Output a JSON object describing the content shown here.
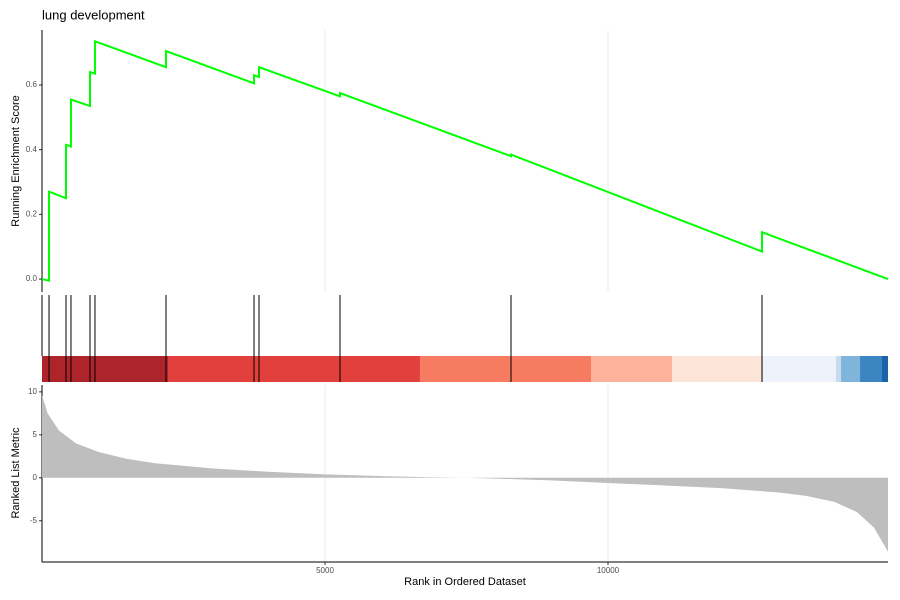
{
  "chart_data": [
    {
      "type": "line",
      "title": "lung development",
      "ylabel": "Running Enrichment Score",
      "color": "#00ff00",
      "x": [
        0,
        124,
        124,
        424,
        424,
        512,
        512,
        848,
        848,
        936,
        936,
        2191,
        2191,
        3746,
        3746,
        3834,
        3834,
        5265,
        5265,
        8286,
        8286,
        12721,
        12721,
        14947
      ],
      "values": [
        0,
        -0.005,
        0.27,
        0.25,
        0.415,
        0.41,
        0.555,
        0.535,
        0.64,
        0.635,
        0.735,
        0.655,
        0.705,
        0.605,
        0.63,
        0.625,
        0.655,
        0.565,
        0.575,
        0.38,
        0.385,
        0.085,
        0.145,
        0
      ],
      "xlim": [
        0,
        14947
      ],
      "ylim": [
        -0.04,
        0.77
      ],
      "yticks": [
        {
          "value": 0,
          "label": "0.0"
        },
        {
          "value": 0.2,
          "label": "0.2"
        },
        {
          "value": 0.4,
          "label": "0.4"
        },
        {
          "value": 0.6,
          "label": "0.6"
        }
      ],
      "grid": true
    },
    {
      "type": "rug",
      "x": [
        124,
        424,
        512,
        848,
        936,
        2191,
        3746,
        3834,
        5265,
        8286,
        12721
      ],
      "xlim": [
        0,
        14947
      ],
      "bins": [
        0,
        2226,
        6678,
        9700,
        11131,
        12739,
        14029,
        14117,
        14453,
        14841,
        14947
      ],
      "colors": [
        "#ad252b",
        "#e2403d",
        "#f67b60",
        "#fdb39b",
        "#fde4d9",
        "#eef3fb",
        "#c6dbef",
        "#80b5db",
        "#3c85c3",
        "#1b62a9"
      ]
    },
    {
      "type": "area",
      "xlabel": "Rank in Ordered Dataset",
      "ylabel": "Ranked List Metric",
      "color": "#bebebe",
      "x": [
        0,
        100,
        300,
        600,
        1000,
        1500,
        2000,
        3000,
        4000,
        5000,
        6000,
        7000,
        7500,
        8000,
        9000,
        10000,
        11000,
        12000,
        13000,
        13500,
        14000,
        14400,
        14700,
        14850,
        14947
      ],
      "values": [
        9.6,
        7.5,
        5.5,
        4,
        3,
        2.2,
        1.7,
        1.1,
        0.7,
        0.4,
        0.2,
        0.05,
        0,
        -0.1,
        -0.3,
        -0.6,
        -0.9,
        -1.2,
        -1.7,
        -2.1,
        -2.8,
        -4,
        -5.8,
        -7.5,
        -8.6
      ],
      "xlim": [
        0,
        14947
      ],
      "ylim": [
        -9.8,
        10.8
      ],
      "yticks": [
        -5,
        0,
        5,
        10
      ],
      "xticks": [
        5000,
        10000
      ],
      "grid": true
    }
  ]
}
